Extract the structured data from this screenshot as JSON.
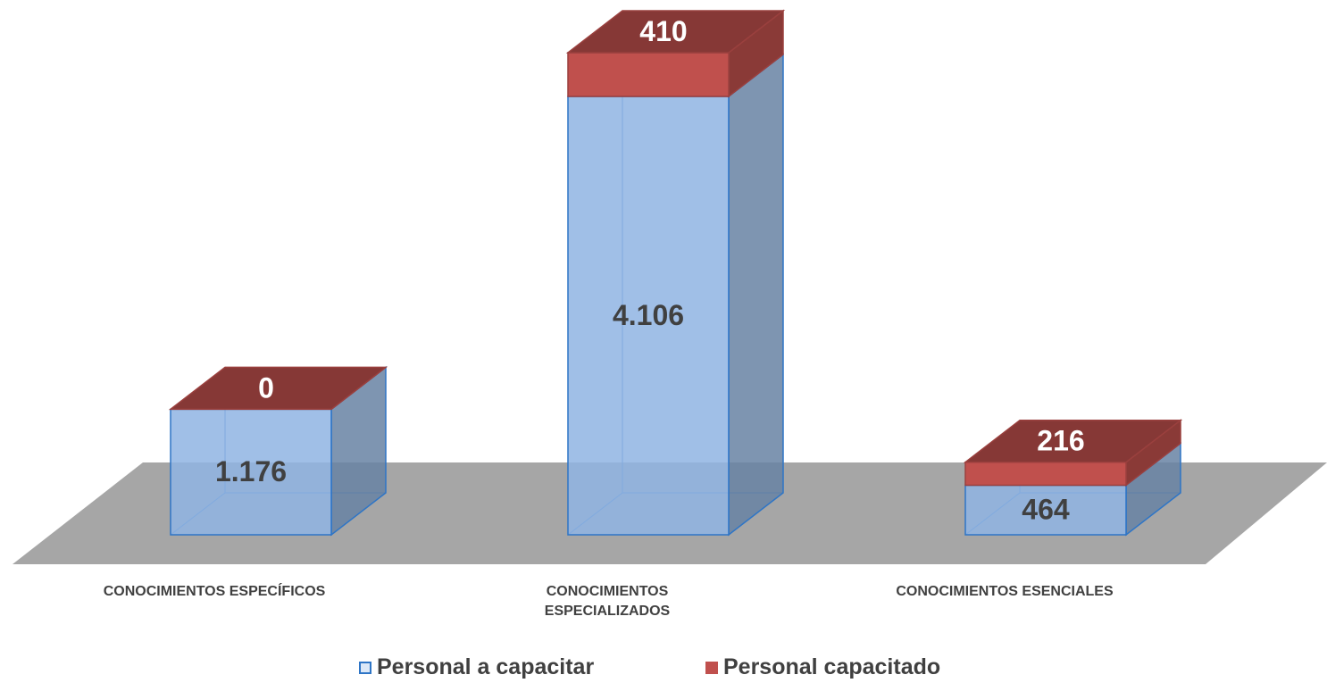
{
  "chart_data": {
    "type": "bar",
    "stacked": true,
    "categories": [
      "CONOCIMIENTOS ESPECÍFICOS",
      "CONOCIMIENTOS ESPECIALIZADOS",
      "CONOCIMIENTOS ESENCIALES"
    ],
    "series": [
      {
        "name": "Personal a capacitar",
        "color": "#8fb4e3",
        "values": [
          1176,
          4106,
          464
        ],
        "value_labels": [
          "1.176",
          "4.106",
          "464"
        ]
      },
      {
        "name": "Personal capacitado",
        "color": "#c0504d",
        "values": [
          0,
          410,
          216
        ],
        "value_labels": [
          "0",
          "410",
          "216"
        ]
      }
    ]
  }
}
